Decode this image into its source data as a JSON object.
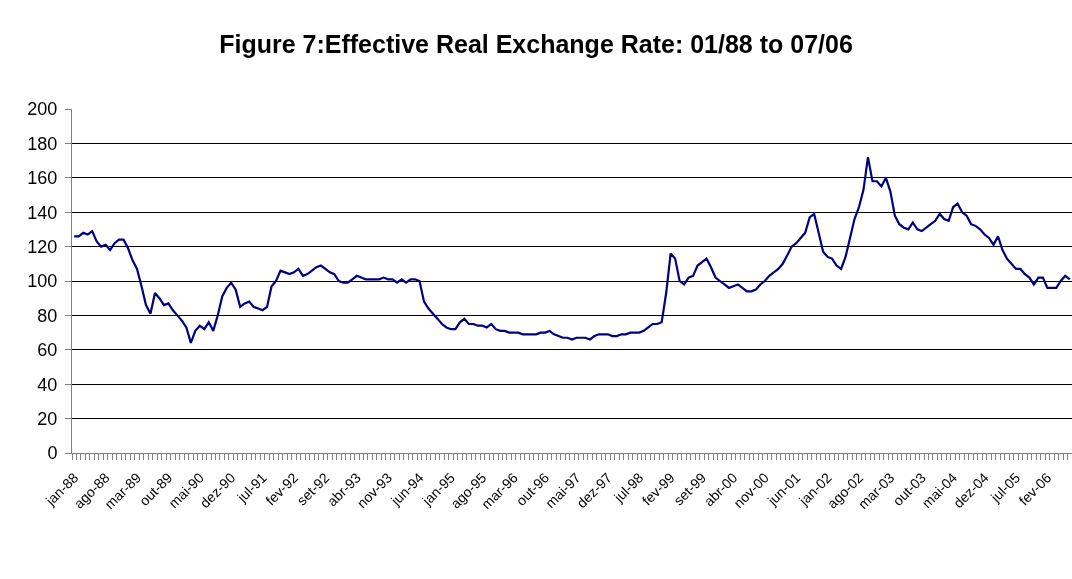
{
  "chart_data": {
    "type": "line",
    "title": "Figure 7:Effective Real Exchange Rate: 01/88 to 07/06",
    "categories": [
      "jan-88",
      null,
      null,
      null,
      null,
      null,
      null,
      "ago-88",
      null,
      null,
      null,
      null,
      null,
      null,
      "mar-89",
      null,
      null,
      null,
      null,
      null,
      null,
      "out-89",
      null,
      null,
      null,
      null,
      null,
      null,
      "mai-90",
      null,
      null,
      null,
      null,
      null,
      null,
      "dez-90",
      null,
      null,
      null,
      null,
      null,
      null,
      "jul-91",
      null,
      null,
      null,
      null,
      null,
      null,
      "fev-92",
      null,
      null,
      null,
      null,
      null,
      null,
      "set-92",
      null,
      null,
      null,
      null,
      null,
      null,
      "abr-93",
      null,
      null,
      null,
      null,
      null,
      null,
      "nov-93",
      null,
      null,
      null,
      null,
      null,
      null,
      "jun-94",
      null,
      null,
      null,
      null,
      null,
      null,
      "jan-95",
      null,
      null,
      null,
      null,
      null,
      null,
      "ago-95",
      null,
      null,
      null,
      null,
      null,
      null,
      "mar-96",
      null,
      null,
      null,
      null,
      null,
      null,
      "out-96",
      null,
      null,
      null,
      null,
      null,
      null,
      "mai-97",
      null,
      null,
      null,
      null,
      null,
      null,
      "dez-97",
      null,
      null,
      null,
      null,
      null,
      null,
      "jul-98",
      null,
      null,
      null,
      null,
      null,
      null,
      "fev-99",
      null,
      null,
      null,
      null,
      null,
      null,
      "set-99",
      null,
      null,
      null,
      null,
      null,
      null,
      "abr-00",
      null,
      null,
      null,
      null,
      null,
      null,
      "nov-00",
      null,
      null,
      null,
      null,
      null,
      null,
      "jun-01",
      null,
      null,
      null,
      null,
      null,
      null,
      "jan-02",
      null,
      null,
      null,
      null,
      null,
      null,
      "ago-02",
      null,
      null,
      null,
      null,
      null,
      null,
      "mar-03",
      null,
      null,
      null,
      null,
      null,
      null,
      "out-03",
      null,
      null,
      null,
      null,
      null,
      null,
      "mai-04",
      null,
      null,
      null,
      null,
      null,
      null,
      "dez-04",
      null,
      null,
      null,
      null,
      null,
      null,
      "jul-05",
      null,
      null,
      null,
      null,
      null,
      null,
      "fev-06",
      null,
      null,
      null,
      null,
      null
    ],
    "series": [
      {
        "color": "#000080",
        "values": [
          126,
          126,
          128,
          127,
          129,
          123,
          120,
          121,
          118,
          122,
          124,
          124,
          119,
          112,
          107,
          97,
          86,
          81,
          93,
          90,
          86,
          87,
          83,
          80,
          77,
          73,
          64,
          71,
          74,
          72,
          76,
          71,
          80,
          91,
          96,
          99,
          95,
          85,
          87,
          88,
          85,
          84,
          83,
          85,
          97,
          100,
          106,
          105,
          104,
          105,
          107,
          103,
          104,
          106,
          108,
          109,
          107,
          105,
          104,
          100,
          99,
          99,
          101,
          103,
          102,
          101,
          101,
          101,
          101,
          102,
          101,
          101,
          99,
          101,
          99,
          101,
          101,
          100,
          88,
          84,
          81,
          78,
          75,
          73,
          72,
          72,
          76,
          78,
          75,
          75,
          74,
          74,
          73,
          75,
          72,
          71,
          71,
          70,
          70,
          70,
          69,
          69,
          69,
          69,
          70,
          70,
          71,
          69,
          68,
          67,
          67,
          66,
          67,
          67,
          67,
          66,
          68,
          69,
          69,
          69,
          68,
          68,
          69,
          69,
          70,
          70,
          70,
          71,
          73,
          75,
          75,
          76,
          93,
          116,
          113,
          100,
          98,
          102,
          103,
          109,
          111,
          113,
          108,
          102,
          100,
          98,
          96,
          97,
          98,
          96,
          94,
          94,
          95,
          98,
          100,
          103,
          105,
          107,
          110,
          115,
          120,
          122,
          125,
          128,
          137,
          139,
          128,
          117,
          114,
          113,
          109,
          107,
          114,
          125,
          136,
          143,
          153,
          172,
          158,
          158,
          155,
          160,
          152,
          138,
          133,
          131,
          130,
          134,
          130,
          129,
          131,
          133,
          135,
          139,
          136,
          135,
          143,
          145,
          140,
          138,
          133,
          132,
          130,
          127,
          125,
          121,
          126,
          118,
          113,
          110,
          107,
          107,
          104,
          102,
          98,
          102,
          102,
          96,
          96,
          96,
          100,
          103,
          101
        ]
      }
    ],
    "ylim": [
      0,
      200
    ],
    "yticks": [
      0,
      20,
      40,
      60,
      80,
      100,
      120,
      140,
      160,
      180,
      200
    ],
    "grid": "y"
  }
}
